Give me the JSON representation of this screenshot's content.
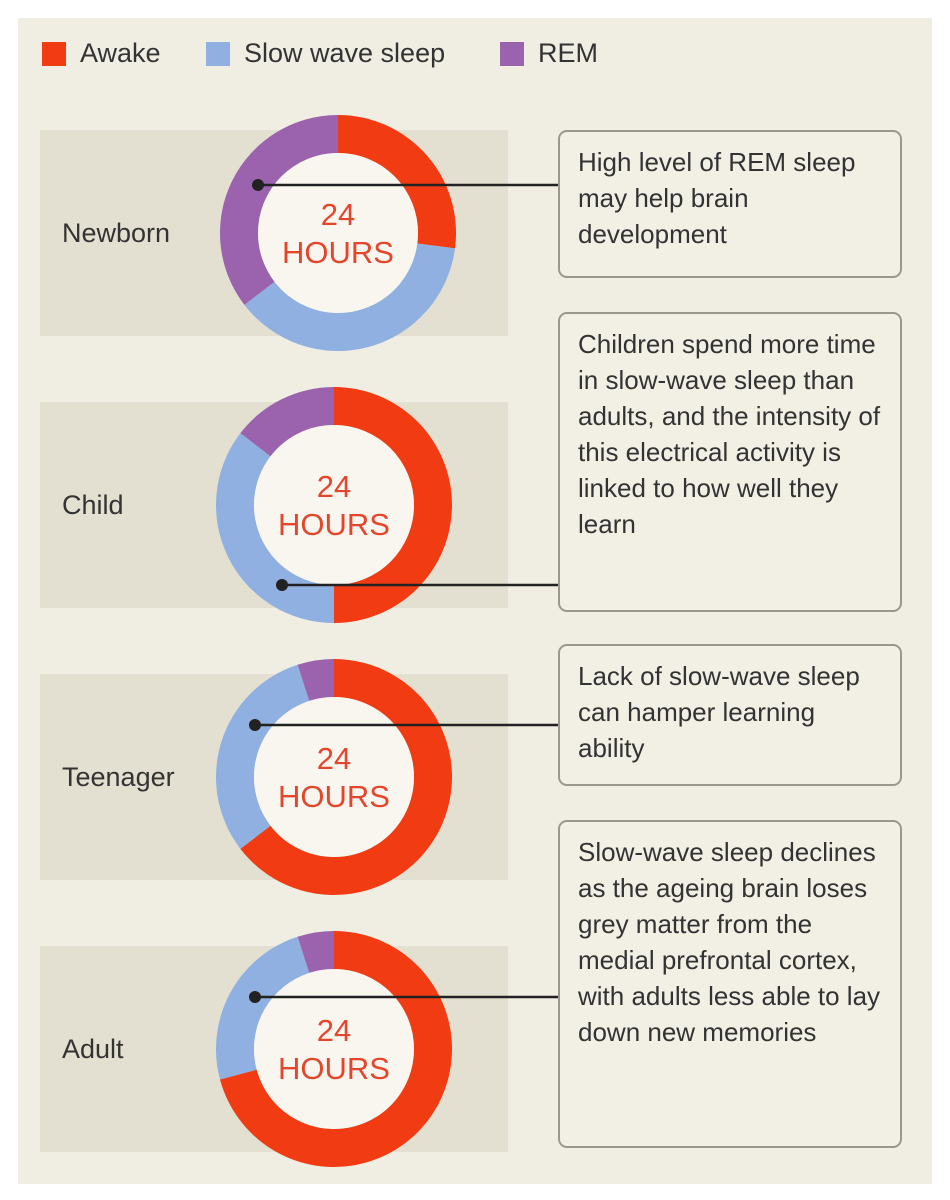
{
  "legend": {
    "items": [
      {
        "label": "Awake",
        "color": "#f03b13"
      },
      {
        "label": "Slow wave sleep",
        "color": "#8fb0e0"
      },
      {
        "label": "REM",
        "color": "#9b62ad"
      }
    ]
  },
  "chart_data": {
    "type": "pie",
    "center_label": [
      "24",
      "HOURS"
    ],
    "series_names": [
      "Awake",
      "Slow wave sleep",
      "REM"
    ],
    "rows": [
      {
        "label": "Newborn",
        "values": {
          "Awake": 6.5,
          "Slow wave sleep": 9.0,
          "REM": 8.5
        },
        "note": "High level of REM sleep may help brain development"
      },
      {
        "label": "Child",
        "values": {
          "Awake": 12.0,
          "Slow wave sleep": 8.5,
          "REM": 3.5
        },
        "note": "Children spend more time in slow-wave sleep than adults, and the intensity of this electrical activity is linked to how well they learn"
      },
      {
        "label": "Teenager",
        "values": {
          "Awake": 15.5,
          "Slow wave sleep": 7.3,
          "REM": 1.2
        },
        "note": "Lack of slow-wave sleep can hamper learning ability"
      },
      {
        "label": "Adult",
        "values": {
          "Awake": 17.0,
          "Slow wave sleep": 5.8,
          "REM": 1.2
        },
        "note": "Slow-wave sleep declines as the ageing brain loses grey matter from the medial prefrontal cortex, with adults less able to lay down new memories"
      }
    ]
  }
}
